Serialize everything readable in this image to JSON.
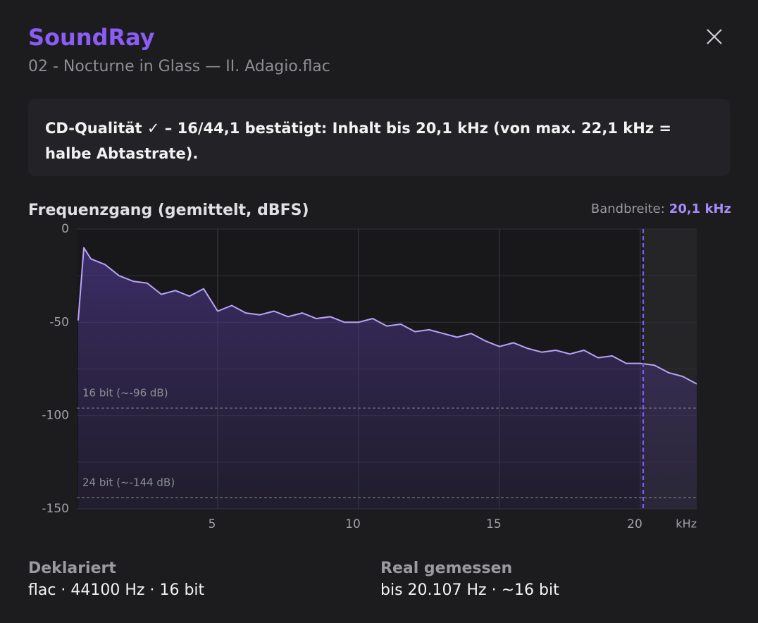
{
  "header": {
    "title": "SoundRay",
    "subtitle": "02 - Nocturne in Glass — II. Adagio.flac"
  },
  "notice": "CD-Qualität ✓ – 16/44,1 bestätigt: Inhalt bis 20,1 kHz (von max. 22,1 kHz = halbe Abtastrate).",
  "chart_data": {
    "type": "line",
    "title": "Frequenzgang (gemittelt, dBFS)",
    "bandwidth_label": "Bandbreite:",
    "bandwidth": {
      "value": 20.1,
      "label": "20,1 kHz"
    },
    "x_label": "kHz",
    "x": [
      0.05,
      0.25,
      0.5,
      1,
      1.5,
      2,
      2.5,
      3,
      3.5,
      4,
      4.5,
      5,
      5.5,
      6,
      6.5,
      7,
      7.5,
      8,
      8.5,
      9,
      9.5,
      10,
      10.5,
      11,
      11.5,
      12,
      12.5,
      13,
      13.5,
      14,
      14.5,
      15,
      15.5,
      16,
      16.5,
      17,
      17.5,
      18,
      18.5,
      19,
      19.5,
      20,
      20.5,
      21,
      21.5,
      22
    ],
    "values": [
      -49,
      -10,
      -16,
      -19,
      -25,
      -28,
      -29,
      -35,
      -33,
      -36,
      -32,
      -44,
      -41,
      -45,
      -46,
      -44,
      -47,
      -45,
      -48,
      -47,
      -50,
      -50,
      -48,
      -52,
      -51,
      -55,
      -54,
      -56,
      -58,
      -56,
      -60,
      -63,
      -61,
      -64,
      -66,
      -65,
      -67,
      -65,
      -69,
      -68,
      -72,
      -72,
      -73,
      -77,
      -79,
      -83
    ],
    "color": "#b9a3f5",
    "xlim": [
      0,
      22
    ],
    "xticks": [
      5,
      10,
      15,
      20
    ],
    "ylim": [
      -150,
      0
    ],
    "yticks": [
      0,
      -50,
      -100,
      -150
    ],
    "yminor": [
      -25,
      -75,
      -125
    ],
    "grid": true,
    "reference_lines": [
      {
        "value": -96,
        "label": "16 bit (~-96 dB)"
      },
      {
        "value": -144,
        "label": "24 bit (~-144 dB)"
      }
    ]
  },
  "footer": {
    "declared": {
      "label": "Deklariert",
      "value": "flac · 44100 Hz · 16 bit"
    },
    "measured": {
      "label": "Real gemessen",
      "value": "bis 20.107 Hz · ~16 bit"
    }
  }
}
